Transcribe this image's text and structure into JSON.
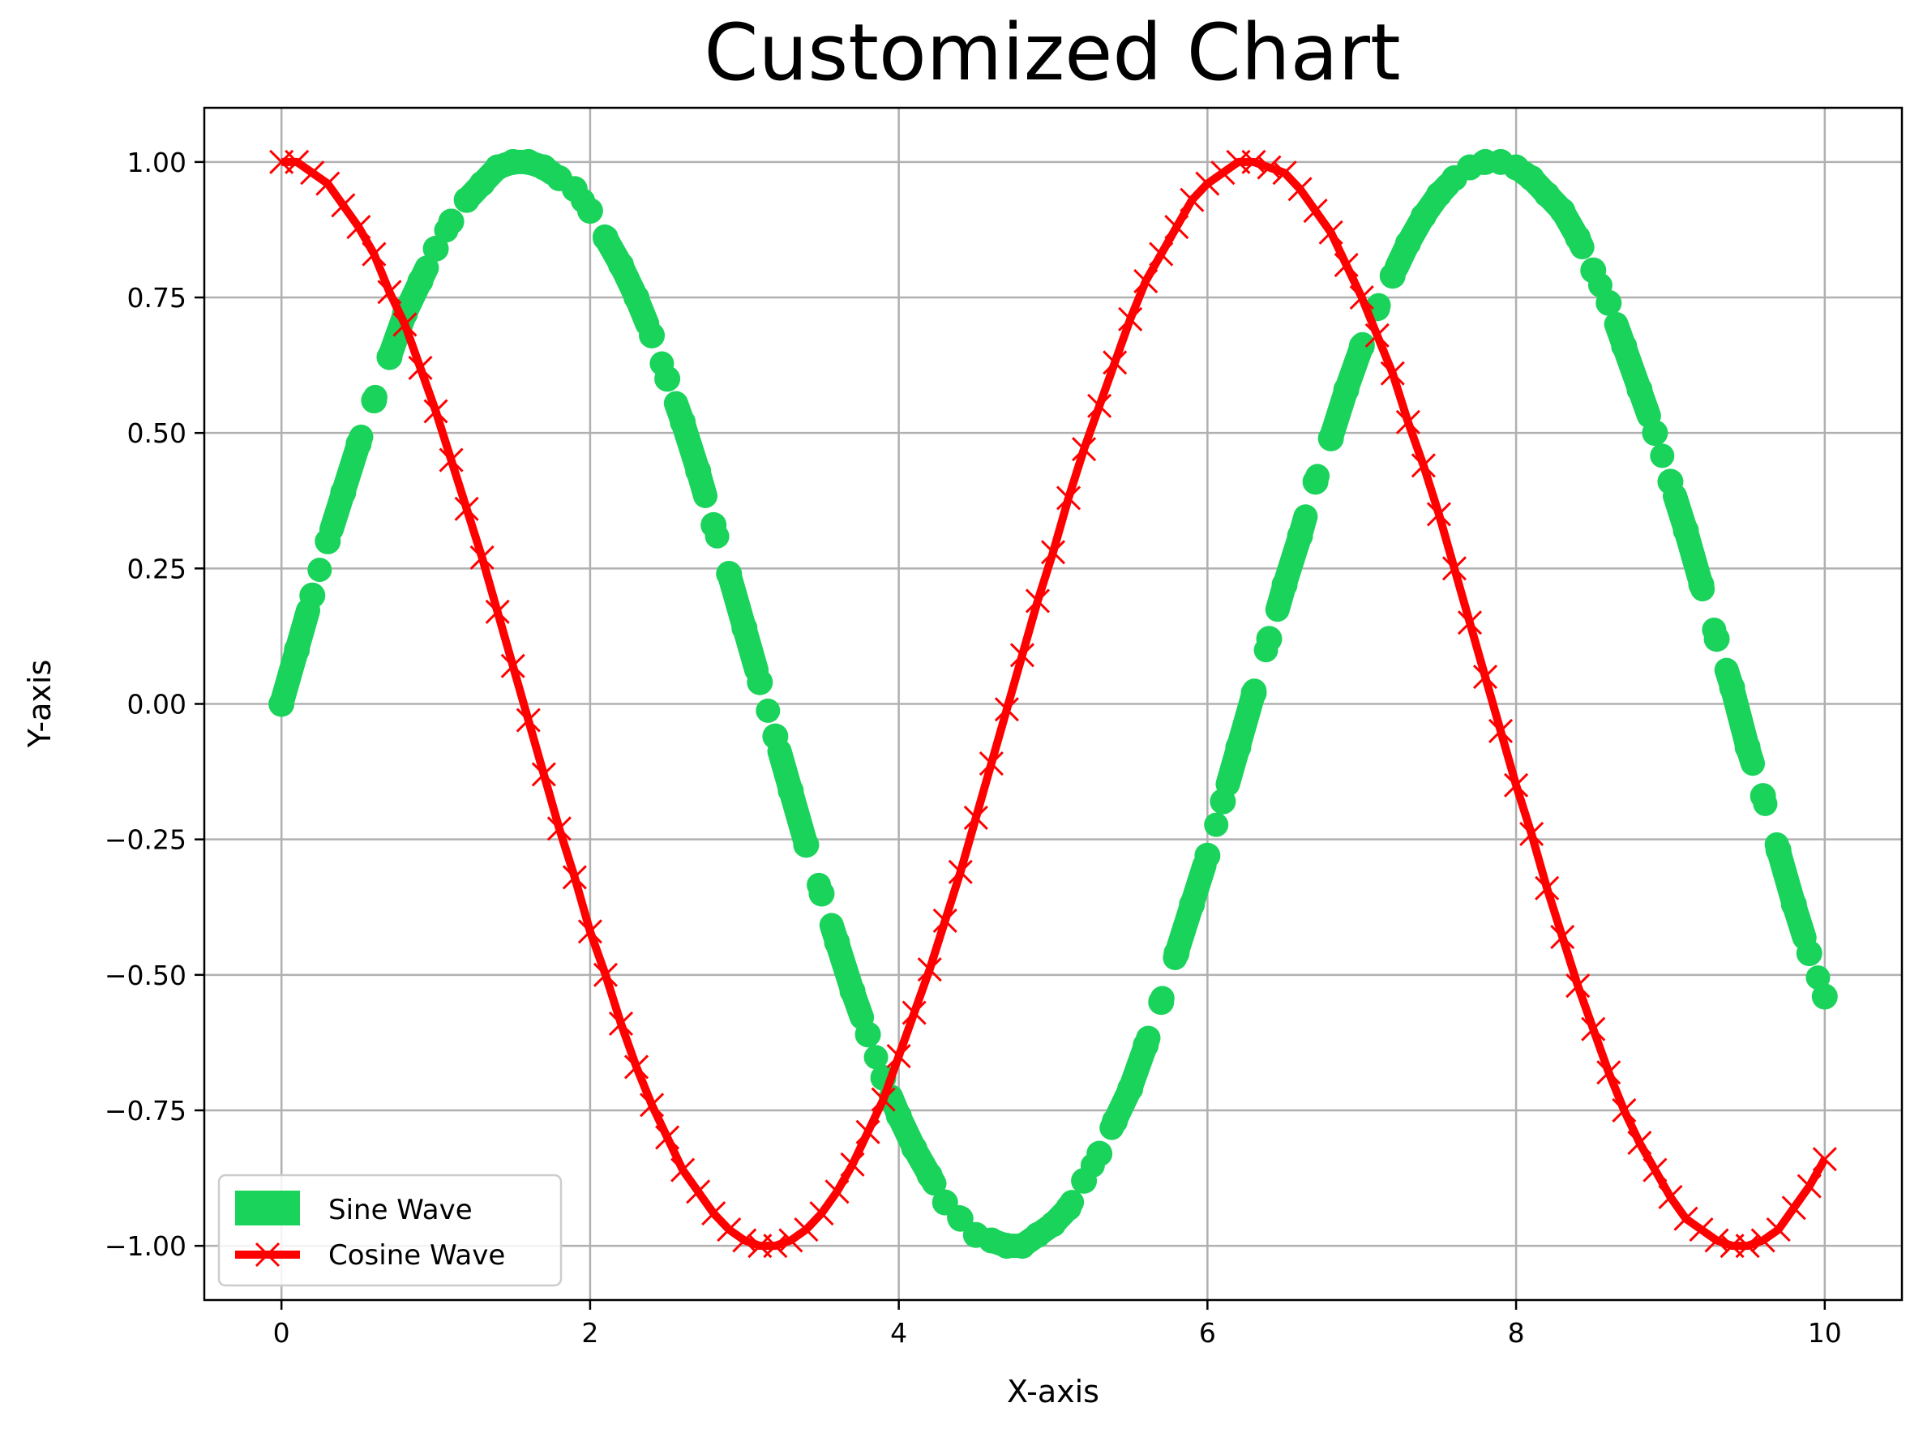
{
  "chart_data": {
    "type": "line",
    "title": "Customized Chart",
    "xlabel": "X-axis",
    "ylabel": "Y-axis",
    "xlim": [
      -0.5,
      10.5
    ],
    "ylim": [
      -1.1,
      1.1
    ],
    "grid": true,
    "legend_position": "lower left",
    "x_ticks": [
      0,
      2,
      4,
      6,
      8,
      10
    ],
    "x_tick_labels": [
      "0",
      "2",
      "4",
      "6",
      "8",
      "10"
    ],
    "y_ticks": [
      1.0,
      0.75,
      0.5,
      0.25,
      0.0,
      -0.25,
      -0.5,
      -0.75,
      -1.0
    ],
    "y_tick_labels": [
      "1.00",
      "0.75",
      "0.50",
      "0.25",
      "0.00",
      "−0.25",
      "−0.50",
      "−0.75",
      "−1.00"
    ],
    "x": [
      0.0,
      0.1,
      0.2,
      0.3,
      0.4,
      0.5,
      0.6,
      0.7,
      0.8,
      0.9,
      1.0,
      1.1,
      1.2,
      1.3,
      1.4,
      1.5,
      1.6,
      1.7,
      1.8,
      1.9,
      2.0,
      2.1,
      2.2,
      2.3,
      2.4,
      2.5,
      2.6,
      2.7,
      2.8,
      2.9,
      3.0,
      3.1,
      3.2,
      3.3,
      3.4,
      3.5,
      3.6,
      3.7,
      3.8,
      3.9,
      4.0,
      4.1,
      4.2,
      4.3,
      4.4,
      4.5,
      4.6,
      4.7,
      4.8,
      4.9,
      5.0,
      5.1,
      5.2,
      5.3,
      5.4,
      5.5,
      5.6,
      5.7,
      5.8,
      5.9,
      6.0,
      6.1,
      6.2,
      6.3,
      6.4,
      6.5,
      6.6,
      6.7,
      6.8,
      6.9,
      7.0,
      7.1,
      7.2,
      7.3,
      7.4,
      7.5,
      7.6,
      7.7,
      7.8,
      7.9,
      8.0,
      8.1,
      8.2,
      8.3,
      8.4,
      8.5,
      8.6,
      8.7,
      8.8,
      8.9,
      9.0,
      9.1,
      9.2,
      9.3,
      9.4,
      9.5,
      9.6,
      9.7,
      9.8,
      9.9,
      10.0
    ],
    "series": [
      {
        "name": "Sine Wave",
        "color": "#19d35b",
        "line_style": "dash-dot",
        "marker": "circle",
        "y": [
          0.0,
          0.1,
          0.2,
          0.3,
          0.39,
          0.48,
          0.56,
          0.64,
          0.72,
          0.78,
          0.84,
          0.89,
          0.93,
          0.96,
          0.99,
          1.0,
          1.0,
          0.99,
          0.97,
          0.95,
          0.91,
          0.86,
          0.81,
          0.75,
          0.68,
          0.6,
          0.52,
          0.43,
          0.33,
          0.24,
          0.14,
          0.04,
          -0.06,
          -0.16,
          -0.26,
          -0.35,
          -0.44,
          -0.53,
          -0.61,
          -0.69,
          -0.76,
          -0.82,
          -0.87,
          -0.92,
          -0.95,
          -0.98,
          -0.99,
          -1.0,
          -1.0,
          -0.98,
          -0.96,
          -0.93,
          -0.88,
          -0.83,
          -0.77,
          -0.71,
          -0.63,
          -0.55,
          -0.46,
          -0.37,
          -0.28,
          -0.18,
          -0.08,
          0.02,
          0.12,
          0.22,
          0.31,
          0.41,
          0.49,
          0.58,
          0.66,
          0.73,
          0.79,
          0.85,
          0.9,
          0.94,
          0.97,
          0.99,
          1.0,
          1.0,
          0.99,
          0.97,
          0.94,
          0.91,
          0.86,
          0.8,
          0.74,
          0.66,
          0.58,
          0.5,
          0.41,
          0.32,
          0.22,
          0.12,
          0.03,
          -0.08,
          -0.17,
          -0.27,
          -0.37,
          -0.46,
          -0.54
        ]
      },
      {
        "name": "Cosine Wave",
        "color": "#ff0000",
        "line_style": "solid",
        "marker": "x",
        "y": [
          1.0,
          1.0,
          0.98,
          0.96,
          0.92,
          0.88,
          0.83,
          0.76,
          0.7,
          0.62,
          0.54,
          0.45,
          0.36,
          0.27,
          0.17,
          0.07,
          -0.03,
          -0.13,
          -0.23,
          -0.32,
          -0.42,
          -0.5,
          -0.59,
          -0.67,
          -0.74,
          -0.8,
          -0.86,
          -0.9,
          -0.94,
          -0.97,
          -0.99,
          -1.0,
          -1.0,
          -0.99,
          -0.97,
          -0.94,
          -0.9,
          -0.85,
          -0.79,
          -0.73,
          -0.65,
          -0.57,
          -0.49,
          -0.4,
          -0.31,
          -0.21,
          -0.11,
          -0.01,
          0.09,
          0.19,
          0.28,
          0.38,
          0.47,
          0.55,
          0.63,
          0.71,
          0.78,
          0.83,
          0.88,
          0.93,
          0.96,
          0.98,
          1.0,
          1.0,
          0.99,
          0.98,
          0.95,
          0.91,
          0.87,
          0.81,
          0.75,
          0.68,
          0.61,
          0.52,
          0.44,
          0.35,
          0.25,
          0.15,
          0.05,
          -0.05,
          -0.15,
          -0.24,
          -0.34,
          -0.43,
          -0.52,
          -0.6,
          -0.68,
          -0.75,
          -0.81,
          -0.86,
          -0.91,
          -0.95,
          -0.97,
          -0.99,
          -1.0,
          -1.0,
          -0.99,
          -0.97,
          -0.93,
          -0.89,
          -0.84
        ]
      }
    ]
  }
}
